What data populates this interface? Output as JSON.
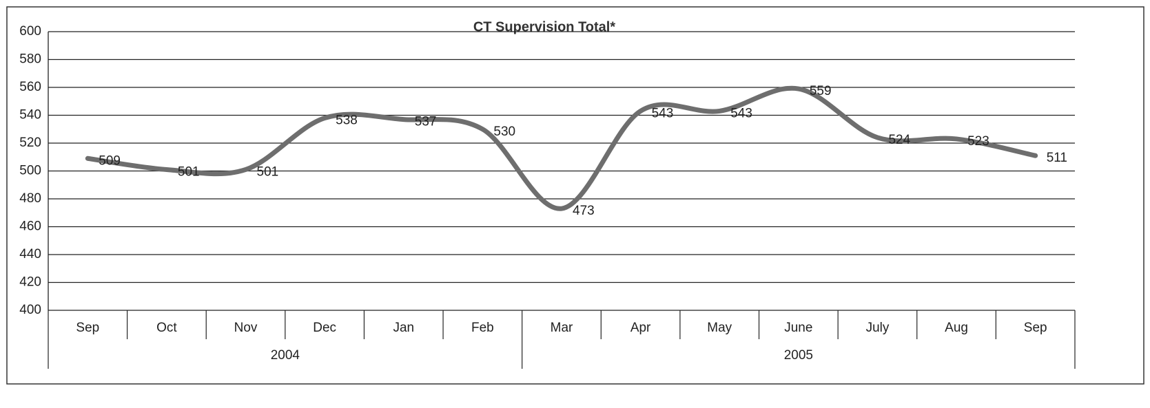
{
  "chart_data": {
    "type": "line",
    "title": "CT Supervision Total*",
    "categories": [
      "Sep",
      "Oct",
      "Nov",
      "Dec",
      "Jan",
      "Feb",
      "Mar",
      "Apr",
      "May",
      "June",
      "July",
      "Aug",
      "Sep"
    ],
    "groups": [
      {
        "name": "2004",
        "count": 6
      },
      {
        "name": "2005",
        "count": 7
      }
    ],
    "series": [
      {
        "name": "CT Supervision Total",
        "color": "#6e6e6e",
        "values": [
          509,
          501,
          501,
          538,
          537,
          530,
          473,
          543,
          543,
          559,
          524,
          523,
          511
        ]
      }
    ],
    "ylim": [
      400,
      600
    ],
    "yticks": [
      400,
      420,
      440,
      460,
      480,
      500,
      520,
      540,
      560,
      580,
      600
    ],
    "grid": true
  }
}
